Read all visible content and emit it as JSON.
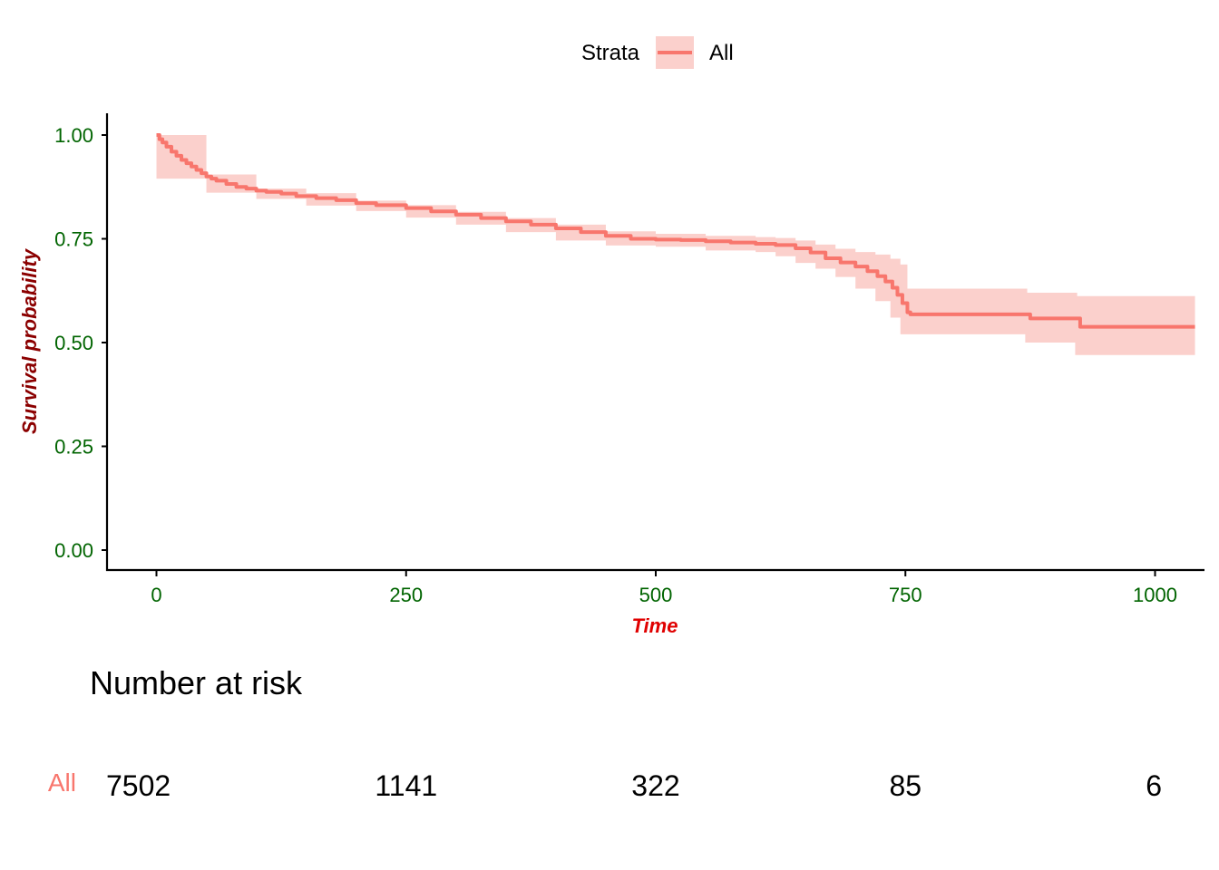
{
  "chart_data": {
    "type": "line",
    "subtype": "kaplan-meier survival curve",
    "title": "",
    "xlabel": "Time",
    "ylabel": "Survival probability",
    "xlim": [
      -25,
      1050
    ],
    "ylim": [
      -0.05,
      1.05
    ],
    "x_ticks": [
      0,
      250,
      500,
      750,
      1000
    ],
    "x_tick_labels": [
      "0",
      "250",
      "500",
      "750",
      "1000"
    ],
    "y_ticks": [
      0,
      0.25,
      0.5,
      0.75,
      1.0
    ],
    "y_tick_labels": [
      "0.00",
      "0.25",
      "0.50",
      "0.75",
      "1.00"
    ],
    "grid": false,
    "legend": {
      "title": "Strata",
      "position": "top",
      "entries": [
        "All"
      ]
    },
    "colors": {
      "series": "#f8766d",
      "band": "#fbd0cc",
      "tick_labels": "#006400",
      "ylabel": "#8b0000",
      "xlabel": "#e00000",
      "axis": "#000000"
    },
    "series": [
      {
        "name": "All",
        "step": true,
        "points": [
          [
            0,
            1.0
          ],
          [
            3,
            0.99
          ],
          [
            6,
            0.982
          ],
          [
            10,
            0.972
          ],
          [
            15,
            0.96
          ],
          [
            20,
            0.95
          ],
          [
            25,
            0.94
          ],
          [
            30,
            0.932
          ],
          [
            35,
            0.924
          ],
          [
            40,
            0.916
          ],
          [
            45,
            0.908
          ],
          [
            50,
            0.9
          ],
          [
            55,
            0.895
          ],
          [
            60,
            0.89
          ],
          [
            70,
            0.882
          ],
          [
            80,
            0.875
          ],
          [
            90,
            0.871
          ],
          [
            100,
            0.866
          ],
          [
            110,
            0.863
          ],
          [
            125,
            0.859
          ],
          [
            140,
            0.853
          ],
          [
            160,
            0.848
          ],
          [
            180,
            0.843
          ],
          [
            200,
            0.836
          ],
          [
            220,
            0.831
          ],
          [
            250,
            0.824
          ],
          [
            275,
            0.816
          ],
          [
            300,
            0.808
          ],
          [
            325,
            0.8
          ],
          [
            350,
            0.792
          ],
          [
            375,
            0.784
          ],
          [
            400,
            0.775
          ],
          [
            425,
            0.766
          ],
          [
            450,
            0.757
          ],
          [
            475,
            0.75
          ],
          [
            500,
            0.748
          ],
          [
            525,
            0.747
          ],
          [
            550,
            0.744
          ],
          [
            575,
            0.741
          ],
          [
            600,
            0.738
          ],
          [
            620,
            0.735
          ],
          [
            640,
            0.727
          ],
          [
            655,
            0.717
          ],
          [
            670,
            0.703
          ],
          [
            685,
            0.693
          ],
          [
            700,
            0.683
          ],
          [
            712,
            0.672
          ],
          [
            722,
            0.66
          ],
          [
            730,
            0.647
          ],
          [
            737,
            0.632
          ],
          [
            742,
            0.615
          ],
          [
            747,
            0.595
          ],
          [
            752,
            0.573
          ],
          [
            755,
            0.568
          ],
          [
            870,
            0.568
          ],
          [
            875,
            0.558
          ],
          [
            920,
            0.558
          ],
          [
            925,
            0.538
          ],
          [
            1040,
            0.538
          ]
        ],
        "ci_upper": [
          [
            0,
            1.0
          ],
          [
            50,
            0.905
          ],
          [
            100,
            0.871
          ],
          [
            150,
            0.86
          ],
          [
            200,
            0.842
          ],
          [
            250,
            0.831
          ],
          [
            300,
            0.815
          ],
          [
            350,
            0.8
          ],
          [
            400,
            0.784
          ],
          [
            450,
            0.768
          ],
          [
            500,
            0.762
          ],
          [
            550,
            0.757
          ],
          [
            600,
            0.754
          ],
          [
            620,
            0.752
          ],
          [
            640,
            0.746
          ],
          [
            660,
            0.736
          ],
          [
            680,
            0.726
          ],
          [
            700,
            0.718
          ],
          [
            720,
            0.712
          ],
          [
            735,
            0.702
          ],
          [
            745,
            0.688
          ],
          [
            752,
            0.63
          ],
          [
            870,
            0.63
          ],
          [
            872,
            0.62
          ],
          [
            920,
            0.62
          ],
          [
            922,
            0.612
          ],
          [
            1040,
            0.612
          ]
        ],
        "ci_lower": [
          [
            0,
            1.0
          ],
          [
            50,
            0.895
          ],
          [
            100,
            0.861
          ],
          [
            150,
            0.846
          ],
          [
            200,
            0.83
          ],
          [
            250,
            0.817
          ],
          [
            300,
            0.801
          ],
          [
            350,
            0.784
          ],
          [
            400,
            0.766
          ],
          [
            450,
            0.746
          ],
          [
            500,
            0.734
          ],
          [
            550,
            0.731
          ],
          [
            600,
            0.722
          ],
          [
            620,
            0.718
          ],
          [
            640,
            0.708
          ],
          [
            660,
            0.692
          ],
          [
            680,
            0.678
          ],
          [
            700,
            0.658
          ],
          [
            720,
            0.63
          ],
          [
            735,
            0.6
          ],
          [
            745,
            0.56
          ],
          [
            752,
            0.52
          ],
          [
            870,
            0.52
          ],
          [
            872,
            0.5
          ],
          [
            920,
            0.5
          ],
          [
            922,
            0.47
          ],
          [
            1040,
            0.47
          ]
        ]
      }
    ],
    "risk_table": {
      "title": "Number at risk",
      "strata": "All",
      "times": [
        0,
        250,
        500,
        750,
        1000
      ],
      "values": [
        "7502",
        "1141",
        "322",
        "85",
        "6"
      ]
    }
  }
}
